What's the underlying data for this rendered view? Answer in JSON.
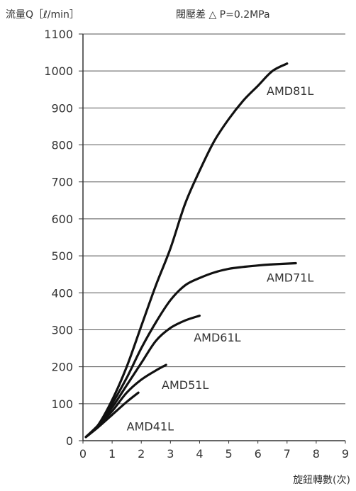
{
  "chart_data": {
    "type": "line",
    "title": "閥壓差 △ P=0.2MPa",
    "ylabel": "流量Q［ℓ/min］",
    "xlabel": "旋鈕轉數(次)",
    "xlim": [
      0,
      9
    ],
    "ylim": [
      0,
      1100
    ],
    "xticks": [
      "0",
      "1",
      "2",
      "3",
      "4",
      "5",
      "6",
      "7",
      "8",
      "9"
    ],
    "yticks": [
      "0",
      "100",
      "200",
      "300",
      "400",
      "500",
      "600",
      "700",
      "800",
      "900",
      "1000",
      "1100"
    ],
    "grid": "horizontal",
    "series": [
      {
        "name": "AMD81L",
        "label_at": [
          6.3,
          935
        ],
        "x": [
          0.1,
          0.5,
          1.0,
          1.5,
          2.0,
          2.5,
          3.0,
          3.5,
          4.0,
          4.5,
          5.0,
          5.5,
          6.0,
          6.5,
          7.0
        ],
        "y": [
          10,
          40,
          110,
          200,
          310,
          420,
          520,
          640,
          730,
          810,
          870,
          920,
          960,
          1000,
          1020
        ]
      },
      {
        "name": "AMD71L",
        "label_at": [
          6.3,
          430
        ],
        "x": [
          0.1,
          0.5,
          1.0,
          1.5,
          2.0,
          2.5,
          3.0,
          3.5,
          4.0,
          4.5,
          5.0,
          5.5,
          6.0,
          6.5,
          7.3
        ],
        "y": [
          10,
          40,
          100,
          170,
          250,
          320,
          380,
          420,
          440,
          455,
          465,
          470,
          474,
          477,
          480
        ]
      },
      {
        "name": "AMD61L",
        "label_at": [
          3.8,
          268
        ],
        "x": [
          0.1,
          0.5,
          1.0,
          1.5,
          2.0,
          2.5,
          3.0,
          3.5,
          4.0
        ],
        "y": [
          10,
          40,
          90,
          150,
          210,
          270,
          305,
          325,
          338
        ]
      },
      {
        "name": "AMD51L",
        "label_at": [
          2.7,
          140
        ],
        "x": [
          0.1,
          0.5,
          1.0,
          1.5,
          2.0,
          2.5,
          2.85
        ],
        "y": [
          10,
          40,
          80,
          130,
          165,
          190,
          205
        ]
      },
      {
        "name": "AMD41L",
        "label_at": [
          1.5,
          28
        ],
        "x": [
          0.1,
          0.5,
          1.0,
          1.5,
          1.9
        ],
        "y": [
          10,
          35,
          70,
          105,
          130
        ]
      }
    ]
  }
}
